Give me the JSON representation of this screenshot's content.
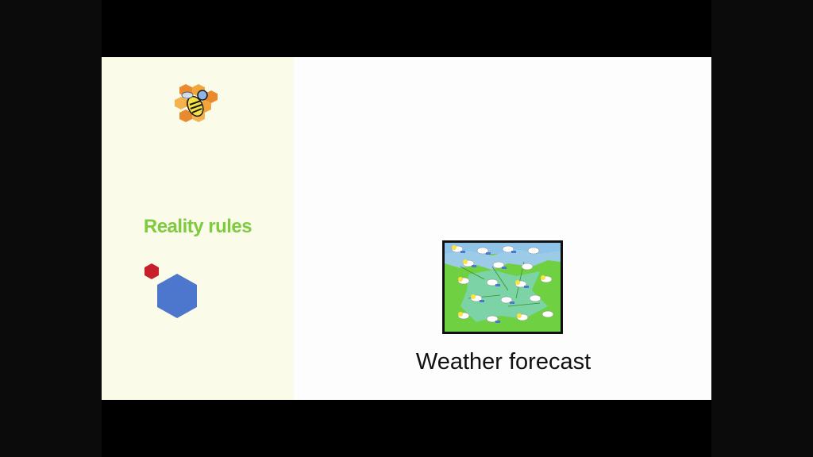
{
  "sidebar": {
    "title": "Reality rules",
    "logo_icon": "bee-honeycomb-icon",
    "accent_color": "#7ecb3f",
    "hex_small_color": "#c8202b",
    "hex_large_color": "#4d77cc"
  },
  "main": {
    "image_icon": "weather-map-icon",
    "caption": "Weather forecast"
  }
}
